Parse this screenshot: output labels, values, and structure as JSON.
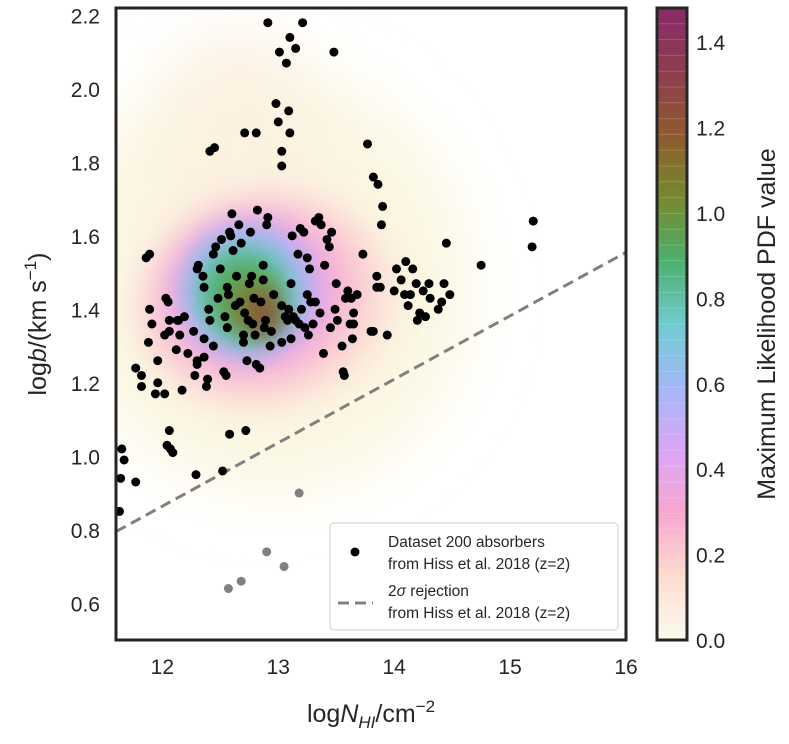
{
  "chart_data": {
    "type": "scatter",
    "xlabel_prefix": "log",
    "xlabel_var": "N",
    "xlabel_sub": "HI",
    "xlabel_suffix": "/cm",
    "xlabel_exp": "−2",
    "ylabel_prefix": "log",
    "ylabel_var": "b",
    "ylabel_suffix": "/(km s",
    "ylabel_exp": "−1",
    "ylabel_close": ")",
    "xlim": [
      11.6,
      16
    ],
    "ylim": [
      0.5,
      2.22
    ],
    "xticks": [
      12,
      13,
      14,
      15,
      16
    ],
    "xtick_labels": [
      "12",
      "13",
      "14",
      "15",
      "16"
    ],
    "yticks": [
      0.6,
      0.8,
      1.0,
      1.2,
      1.4,
      1.6,
      1.8,
      2.0,
      2.2
    ],
    "ytick_labels": [
      "0.6",
      "0.8",
      "1.0",
      "1.2",
      "1.4",
      "1.6",
      "1.8",
      "2.0",
      "2.2"
    ],
    "colorbar": {
      "label": "Maximum Likelihood PDF value",
      "range": [
        0,
        1.48
      ],
      "ticks": [
        0,
        0.2,
        0.4,
        0.6,
        0.8,
        1.0,
        1.2,
        1.4
      ],
      "tick_labels": [
        "0.0",
        "0.2",
        "0.4",
        "0.6",
        "0.8",
        "1.0",
        "1.2",
        "1.4"
      ],
      "colors": [
        "#fbfbee",
        "#fcdccf",
        "#f8a7cf",
        "#dba5f7",
        "#a3b8f7",
        "#6fcbd0",
        "#4cb06c",
        "#77882f",
        "#8e5a2e",
        "#8e3d4e",
        "#8a2b68"
      ]
    },
    "legend": {
      "position": "lower-right",
      "scatter_line1": "Dataset 200 absorbers",
      "scatter_line2": "from Hiss et al. 2018 (z=2)",
      "line_prefix": "2",
      "line_sigma": "σ",
      "line_rest": " rejection",
      "line_line2": "from Hiss et al. 2018 (z=2)"
    },
    "rejection_line": {
      "name": "2σ rejection",
      "x": [
        11.6,
        16.0
      ],
      "y": [
        0.795,
        1.555
      ],
      "color": "#808080",
      "style": "dashed"
    },
    "accepted_points": [
      [
        11.63,
        0.85
      ],
      [
        11.65,
        1.02
      ],
      [
        11.67,
        0.99
      ],
      [
        11.64,
        0.94
      ],
      [
        11.77,
        0.93
      ],
      [
        11.77,
        1.24
      ],
      [
        11.82,
        1.22
      ],
      [
        11.82,
        1.19
      ],
      [
        11.86,
        1.54
      ],
      [
        11.89,
        1.55
      ],
      [
        11.88,
        1.31
      ],
      [
        11.89,
        1.4
      ],
      [
        11.91,
        1.36
      ],
      [
        11.94,
        1.17
      ],
      [
        11.96,
        1.2
      ],
      [
        11.96,
        1.26
      ],
      [
        12.02,
        1.17
      ],
      [
        12.02,
        1.33
      ],
      [
        12.03,
        1.43
      ],
      [
        12.05,
        1.42
      ],
      [
        12.06,
        1.34
      ],
      [
        12.06,
        1.37
      ],
      [
        12.04,
        1.03
      ],
      [
        12.06,
        1.07
      ],
      [
        12.07,
        1.02
      ],
      [
        12.09,
        1.01
      ],
      [
        12.12,
        1.29
      ],
      [
        12.13,
        1.37
      ],
      [
        12.15,
        1.33
      ],
      [
        12.14,
        1.37
      ],
      [
        12.17,
        1.18
      ],
      [
        12.19,
        1.38
      ],
      [
        12.22,
        1.28
      ],
      [
        12.27,
        1.34
      ],
      [
        12.28,
        1.22
      ],
      [
        12.3,
        1.25
      ],
      [
        12.3,
        1.51
      ],
      [
        12.31,
        1.52
      ],
      [
        12.3,
        1.26
      ],
      [
        12.29,
        0.95
      ],
      [
        12.36,
        1.27
      ],
      [
        12.36,
        1.32
      ],
      [
        12.36,
        1.46
      ],
      [
        12.35,
        1.49
      ],
      [
        12.38,
        1.19
      ],
      [
        12.39,
        1.21
      ],
      [
        12.4,
        1.4
      ],
      [
        12.41,
        1.37
      ],
      [
        12.41,
        1.83
      ],
      [
        12.44,
        1.55
      ],
      [
        12.44,
        1.3
      ],
      [
        12.45,
        1.84
      ],
      [
        12.46,
        1.57
      ],
      [
        12.48,
        1.43
      ],
      [
        12.5,
        1.51
      ],
      [
        12.51,
        1.59
      ],
      [
        12.52,
        0.96
      ],
      [
        12.53,
        1.23
      ],
      [
        12.54,
        1.38
      ],
      [
        12.55,
        1.22
      ],
      [
        12.56,
        1.35
      ],
      [
        12.56,
        1.46
      ],
      [
        12.57,
        1.44
      ],
      [
        12.58,
        1.06
      ],
      [
        12.58,
        1.61
      ],
      [
        12.59,
        1.6
      ],
      [
        12.6,
        1.66
      ],
      [
        12.61,
        1.56
      ],
      [
        12.63,
        1.41
      ],
      [
        12.64,
        1.49
      ],
      [
        12.66,
        1.63
      ],
      [
        12.67,
        1.42
      ],
      [
        12.68,
        1.58
      ],
      [
        12.7,
        1.31
      ],
      [
        12.7,
        1.33
      ],
      [
        12.71,
        1.39
      ],
      [
        12.71,
        1.88
      ],
      [
        12.72,
        1.07
      ],
      [
        12.73,
        1.26
      ],
      [
        12.74,
        1.37
      ],
      [
        12.75,
        1.47
      ],
      [
        12.76,
        1.61
      ],
      [
        12.77,
        1.49
      ],
      [
        12.78,
        1.36
      ],
      [
        12.79,
        1.43
      ],
      [
        12.8,
        1.33
      ],
      [
        12.81,
        1.88
      ],
      [
        12.81,
        1.25
      ],
      [
        12.82,
        1.67
      ],
      [
        12.84,
        1.24
      ],
      [
        12.85,
        1.42
      ],
      [
        12.87,
        1.48
      ],
      [
        12.87,
        1.52
      ],
      [
        12.88,
        1.35
      ],
      [
        12.89,
        1.37
      ],
      [
        12.9,
        1.63
      ],
      [
        12.91,
        1.65
      ],
      [
        12.91,
        2.18
      ],
      [
        12.93,
        1.3
      ],
      [
        12.94,
        1.34
      ],
      [
        12.96,
        1.44
      ],
      [
        12.98,
        1.96
      ],
      [
        13.0,
        1.91
      ],
      [
        13.01,
        2.1
      ],
      [
        13.03,
        1.83
      ],
      [
        13.03,
        1.41
      ],
      [
        13.03,
        1.31
      ],
      [
        13.03,
        1.79
      ],
      [
        13.06,
        1.38
      ],
      [
        13.07,
        2.07
      ],
      [
        13.08,
        1.37
      ],
      [
        13.09,
        1.4
      ],
      [
        13.09,
        1.94
      ],
      [
        13.1,
        1.88
      ],
      [
        13.1,
        2.14
      ],
      [
        13.11,
        1.32
      ],
      [
        13.11,
        1.47
      ],
      [
        13.12,
        1.6
      ],
      [
        13.13,
        1.38
      ],
      [
        13.15,
        2.11
      ],
      [
        13.15,
        1.37
      ],
      [
        13.17,
        1.55
      ],
      [
        13.18,
        1.36
      ],
      [
        13.19,
        1.62
      ],
      [
        13.2,
        1.4
      ],
      [
        13.21,
        2.18
      ],
      [
        13.22,
        1.61
      ],
      [
        13.23,
        1.35
      ],
      [
        13.25,
        1.44
      ],
      [
        13.25,
        1.54
      ],
      [
        13.26,
        1.33
      ],
      [
        13.27,
        1.51
      ],
      [
        13.28,
        1.42
      ],
      [
        13.3,
        1.36
      ],
      [
        13.32,
        1.42
      ],
      [
        13.32,
        1.64
      ],
      [
        13.35,
        1.65
      ],
      [
        13.36,
        1.39
      ],
      [
        13.37,
        1.63
      ],
      [
        13.39,
        1.28
      ],
      [
        13.4,
        1.52
      ],
      [
        13.42,
        1.59
      ],
      [
        13.44,
        1.57
      ],
      [
        13.45,
        1.35
      ],
      [
        13.46,
        1.61
      ],
      [
        13.48,
        2.1
      ],
      [
        13.49,
        1.4
      ],
      [
        13.5,
        1.47
      ],
      [
        13.51,
        1.37
      ],
      [
        13.55,
        1.3
      ],
      [
        13.56,
        1.23
      ],
      [
        13.57,
        1.22
      ],
      [
        13.58,
        1.43
      ],
      [
        13.6,
        1.45
      ],
      [
        13.62,
        1.36
      ],
      [
        13.63,
        1.43
      ],
      [
        13.64,
        1.32
      ],
      [
        13.65,
        1.39
      ],
      [
        13.65,
        1.36
      ],
      [
        13.68,
        1.44
      ],
      [
        13.73,
        1.55
      ],
      [
        13.77,
        1.85
      ],
      [
        13.8,
        1.34
      ],
      [
        13.82,
        1.76
      ],
      [
        13.82,
        1.34
      ],
      [
        13.85,
        1.46
      ],
      [
        13.85,
        1.49
      ],
      [
        13.86,
        1.74
      ],
      [
        13.88,
        1.46
      ],
      [
        13.89,
        1.63
      ],
      [
        13.9,
        1.68
      ],
      [
        13.94,
        1.33
      ],
      [
        14.0,
        1.45
      ],
      [
        14.02,
        1.51
      ],
      [
        14.06,
        1.48
      ],
      [
        14.09,
        1.44
      ],
      [
        14.1,
        1.53
      ],
      [
        14.12,
        1.41
      ],
      [
        14.14,
        1.44
      ],
      [
        14.16,
        1.51
      ],
      [
        14.19,
        1.47
      ],
      [
        14.2,
        1.37
      ],
      [
        14.22,
        1.39
      ],
      [
        14.25,
        1.45
      ],
      [
        14.27,
        1.38
      ],
      [
        14.3,
        1.47
      ],
      [
        14.31,
        1.43
      ],
      [
        14.38,
        1.4
      ],
      [
        14.41,
        1.42
      ],
      [
        14.43,
        1.47
      ],
      [
        14.45,
        1.58
      ],
      [
        14.48,
        1.44
      ],
      [
        14.75,
        1.52
      ],
      [
        15.19,
        1.57
      ],
      [
        15.2,
        1.64
      ]
    ],
    "rejected_points": [
      [
        12.57,
        0.64
      ],
      [
        12.68,
        0.66
      ],
      [
        12.9,
        0.74
      ],
      [
        13.18,
        0.9
      ],
      [
        13.05,
        0.7
      ]
    ]
  }
}
